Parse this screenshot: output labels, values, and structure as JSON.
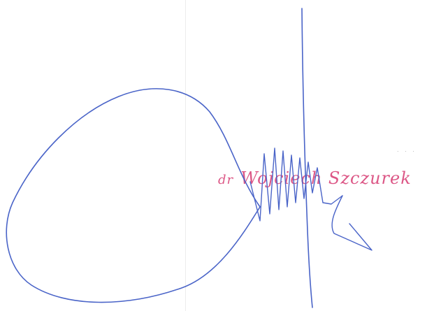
{
  "document": {
    "background": "#ffffff"
  },
  "stamp": {
    "title": "dr",
    "name": "Wojciech Szczurek",
    "color": "#d9457a"
  },
  "signature": {
    "ink_color": "#4a64c8"
  }
}
